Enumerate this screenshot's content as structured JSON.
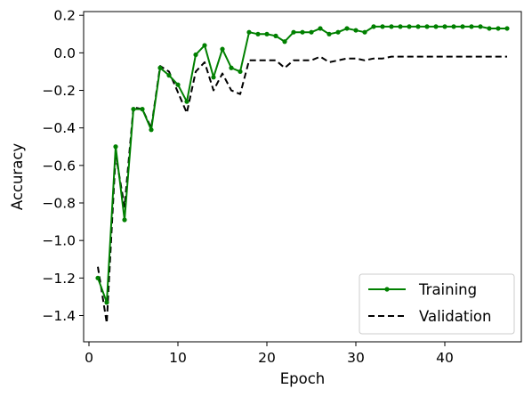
{
  "chart_data": {
    "type": "line",
    "xlabel": "Epoch",
    "ylabel": "Accuracy",
    "xlim": [
      -0.6,
      48.6
    ],
    "ylim": [
      -1.54,
      0.22
    ],
    "xticks": [
      0,
      10,
      20,
      30,
      40
    ],
    "yticks": [
      -1.4,
      -1.2,
      -1.0,
      -0.8,
      -0.6,
      -0.4,
      -0.2,
      0.0,
      0.2
    ],
    "xtick_labels": [
      "0",
      "10",
      "20",
      "30",
      "40"
    ],
    "ytick_labels": [
      "−1.4",
      "−1.2",
      "−1.0",
      "−0.8",
      "−0.6",
      "−0.4",
      "−0.2",
      "0.0",
      "0.2"
    ],
    "grid": false,
    "legend_position": "lower-right",
    "x": [
      1,
      2,
      3,
      4,
      5,
      6,
      7,
      8,
      9,
      10,
      11,
      12,
      13,
      14,
      15,
      16,
      17,
      18,
      19,
      20,
      21,
      22,
      23,
      24,
      25,
      26,
      27,
      28,
      29,
      30,
      31,
      32,
      33,
      34,
      35,
      36,
      37,
      38,
      39,
      40,
      41,
      42,
      43,
      44,
      45,
      46,
      47
    ],
    "series": [
      {
        "name": "Training",
        "color": "#008000",
        "style": "solid",
        "marker": "circle",
        "values": [
          -1.2,
          -1.33,
          -0.5,
          -0.89,
          -0.3,
          -0.3,
          -0.41,
          -0.08,
          -0.12,
          -0.17,
          -0.26,
          -0.01,
          0.04,
          -0.13,
          0.02,
          -0.08,
          -0.1,
          0.11,
          0.1,
          0.1,
          0.09,
          0.06,
          0.11,
          0.11,
          0.11,
          0.13,
          0.1,
          0.11,
          0.13,
          0.12,
          0.11,
          0.14,
          0.14,
          0.14,
          0.14,
          0.14,
          0.14,
          0.14,
          0.14,
          0.14,
          0.14,
          0.14,
          0.14,
          0.14,
          0.13,
          0.13,
          0.13
        ]
      },
      {
        "name": "Validation",
        "color": "#000000",
        "style": "dashed",
        "marker": "none",
        "values": [
          -1.14,
          -1.44,
          -0.54,
          -0.82,
          -0.29,
          -0.3,
          -0.4,
          -0.07,
          -0.1,
          -0.21,
          -0.32,
          -0.1,
          -0.05,
          -0.2,
          -0.11,
          -0.2,
          -0.22,
          -0.04,
          -0.04,
          -0.04,
          -0.04,
          -0.08,
          -0.04,
          -0.04,
          -0.04,
          -0.02,
          -0.05,
          -0.04,
          -0.03,
          -0.03,
          -0.04,
          -0.03,
          -0.03,
          -0.02,
          -0.02,
          -0.02,
          -0.02,
          -0.02,
          -0.02,
          -0.02,
          -0.02,
          -0.02,
          -0.02,
          -0.02,
          -0.02,
          -0.02,
          -0.02
        ]
      }
    ]
  }
}
